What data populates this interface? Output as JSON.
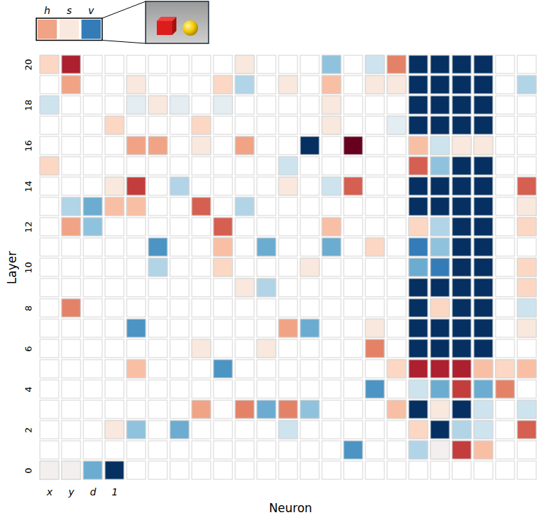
{
  "chart_data": {
    "type": "heatmap_grid",
    "xlabel": "Neuron",
    "ylabel": "Layer",
    "yticks": [
      0,
      2,
      4,
      6,
      8,
      10,
      12,
      14,
      16,
      18,
      20
    ],
    "neuron_labels": [
      "x",
      "y",
      "d",
      "1"
    ],
    "color_range": [
      -1,
      1
    ],
    "inset": {
      "labels": [
        "h",
        "s",
        "v"
      ],
      "values": [
        0.4,
        0.1,
        -0.7
      ]
    },
    "layers": [
      {
        "layer": 20,
        "values": [
          0.2,
          0.8,
          null,
          null,
          null,
          null,
          null,
          null,
          null,
          0.1,
          null,
          null,
          null,
          -0.4,
          null,
          -0.2,
          0.5,
          -1,
          -1,
          -1,
          -1,
          null,
          null
        ]
      },
      {
        "layer": 19,
        "values": [
          null,
          0.4,
          null,
          null,
          0.1,
          null,
          null,
          null,
          0.2,
          -0.3,
          null,
          0.1,
          null,
          0.3,
          null,
          0.1,
          0.1,
          -1,
          -1,
          -1,
          -1,
          null,
          -0.3
        ]
      },
      {
        "layer": 18,
        "values": [
          -0.2,
          null,
          null,
          null,
          -0.1,
          0.1,
          -0.1,
          null,
          -0.1,
          null,
          null,
          null,
          null,
          0.1,
          null,
          null,
          null,
          -1,
          -1,
          -1,
          -1,
          null,
          null
        ]
      },
      {
        "layer": 17,
        "values": [
          null,
          null,
          null,
          0.2,
          null,
          null,
          null,
          0.2,
          null,
          null,
          null,
          null,
          null,
          0.1,
          null,
          null,
          -0.1,
          -1,
          -1,
          -1,
          -1,
          null,
          null
        ]
      },
      {
        "layer": 16,
        "values": [
          null,
          null,
          null,
          null,
          0.4,
          0.4,
          null,
          0.1,
          null,
          0.4,
          null,
          null,
          -1,
          null,
          1,
          null,
          null,
          0.3,
          -0.2,
          0.1,
          0.1,
          null,
          null
        ]
      },
      {
        "layer": 15,
        "values": [
          0.2,
          null,
          null,
          null,
          null,
          null,
          null,
          null,
          null,
          null,
          null,
          -0.2,
          null,
          null,
          null,
          null,
          null,
          0.6,
          -0.4,
          -1,
          -1,
          null,
          null
        ]
      },
      {
        "layer": 14,
        "values": [
          null,
          null,
          null,
          0.1,
          0.7,
          null,
          -0.3,
          null,
          null,
          null,
          null,
          0.1,
          null,
          -0.2,
          0.6,
          null,
          null,
          -1,
          -1,
          -1,
          -1,
          null,
          0.6
        ]
      },
      {
        "layer": 13,
        "values": [
          null,
          -0.3,
          -0.5,
          0.3,
          0.3,
          null,
          null,
          0.6,
          null,
          -0.3,
          null,
          null,
          null,
          null,
          null,
          null,
          null,
          -1,
          -1,
          -1,
          -1,
          null,
          0.1
        ]
      },
      {
        "layer": 12,
        "values": [
          null,
          0.4,
          -0.4,
          null,
          null,
          null,
          null,
          null,
          0.6,
          null,
          null,
          null,
          null,
          0.3,
          null,
          null,
          null,
          0.2,
          -0.3,
          -1,
          -1,
          null,
          0.2
        ]
      },
      {
        "layer": 11,
        "values": [
          null,
          null,
          null,
          null,
          null,
          -0.6,
          null,
          null,
          0.3,
          null,
          -0.5,
          null,
          null,
          -0.5,
          null,
          0.2,
          null,
          -0.7,
          -0.4,
          -1,
          -1,
          null,
          null
        ]
      },
      {
        "layer": 10,
        "values": [
          null,
          null,
          null,
          null,
          null,
          -0.3,
          null,
          null,
          0.2,
          null,
          null,
          null,
          0.1,
          null,
          null,
          null,
          null,
          -0.5,
          -0.7,
          -1,
          -1,
          null,
          0.2
        ]
      },
      {
        "layer": 9,
        "values": [
          null,
          null,
          null,
          null,
          null,
          null,
          null,
          null,
          null,
          0.1,
          -0.3,
          null,
          null,
          null,
          null,
          null,
          null,
          -1,
          -1,
          -1,
          -1,
          null,
          0.2
        ]
      },
      {
        "layer": 8,
        "values": [
          null,
          0.5,
          null,
          null,
          null,
          null,
          null,
          null,
          null,
          null,
          null,
          null,
          null,
          null,
          null,
          null,
          null,
          -1,
          0.2,
          -1,
          -1,
          null,
          -0.2
        ]
      },
      {
        "layer": 7,
        "values": [
          null,
          null,
          null,
          null,
          -0.6,
          null,
          null,
          null,
          null,
          null,
          null,
          0.4,
          -0.5,
          null,
          null,
          0.1,
          null,
          -1,
          -1,
          -1,
          -1,
          null,
          0.1
        ]
      },
      {
        "layer": 6,
        "values": [
          null,
          null,
          null,
          null,
          null,
          null,
          null,
          0.1,
          null,
          null,
          0.1,
          null,
          null,
          null,
          null,
          0.5,
          null,
          -1,
          -1,
          -1,
          -1,
          null,
          null
        ]
      },
      {
        "layer": 5,
        "values": [
          null,
          null,
          null,
          null,
          0.3,
          null,
          null,
          null,
          -0.6,
          null,
          null,
          null,
          null,
          null,
          null,
          null,
          0.2,
          0.8,
          0.8,
          0.8,
          0.3,
          0.2,
          0.3
        ]
      },
      {
        "layer": 4,
        "values": [
          null,
          null,
          null,
          null,
          null,
          null,
          null,
          null,
          null,
          null,
          null,
          null,
          null,
          null,
          null,
          -0.6,
          null,
          -0.2,
          -0.5,
          0.7,
          -0.5,
          0.5,
          null
        ]
      },
      {
        "layer": 3,
        "values": [
          null,
          null,
          null,
          null,
          null,
          null,
          null,
          0.4,
          null,
          0.5,
          -0.5,
          0.5,
          -0.4,
          null,
          null,
          null,
          0.3,
          -1,
          0.1,
          -1,
          -0.2,
          null,
          -0.2
        ]
      },
      {
        "layer": 2,
        "values": [
          null,
          null,
          null,
          0.1,
          -0.4,
          null,
          -0.5,
          null,
          null,
          null,
          null,
          -0.2,
          null,
          null,
          null,
          null,
          null,
          0.2,
          -1,
          -0.3,
          -0.2,
          null,
          0.6
        ]
      },
      {
        "layer": 1,
        "values": [
          null,
          null,
          null,
          null,
          null,
          null,
          null,
          null,
          null,
          null,
          null,
          null,
          null,
          null,
          -0.6,
          null,
          null,
          -0.3,
          0,
          0.7,
          0.3,
          null,
          null
        ]
      },
      {
        "layer": 0,
        "values": [
          0,
          0,
          -0.5,
          -1,
          null,
          null,
          null,
          null,
          null,
          null,
          null,
          null,
          null,
          null,
          null,
          null,
          null,
          null,
          null,
          null,
          null,
          null,
          null
        ]
      }
    ]
  }
}
